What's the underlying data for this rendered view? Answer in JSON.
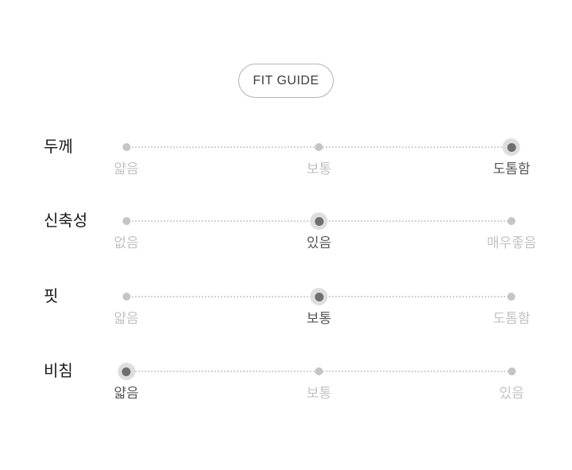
{
  "fit_guide_button": {
    "label": "FIT GUIDE"
  },
  "rows": [
    {
      "name": "두께",
      "options": [
        {
          "label": "얇음",
          "selected": false
        },
        {
          "label": "보통",
          "selected": false
        },
        {
          "label": "도톰함",
          "selected": true
        }
      ]
    },
    {
      "name": "신축성",
      "options": [
        {
          "label": "없음",
          "selected": false
        },
        {
          "label": "있음",
          "selected": true
        },
        {
          "label": "매우좋음",
          "selected": false
        }
      ]
    },
    {
      "name": "핏",
      "options": [
        {
          "label": "얇음",
          "selected": false
        },
        {
          "label": "보통",
          "selected": true
        },
        {
          "label": "도톰함",
          "selected": false
        }
      ]
    },
    {
      "name": "비침",
      "options": [
        {
          "label": "얇음",
          "selected": true
        },
        {
          "label": "보통",
          "selected": false
        },
        {
          "label": "있음",
          "selected": false
        }
      ]
    }
  ],
  "colors": {
    "background": "#ffffff",
    "row_title": "#1a1a1a",
    "selected_dot": "#6f6f6f",
    "selected_dot_halo": "#dedede",
    "inactive_dot": "#c5c5c5",
    "track_dotted_line": "#d2d2d2",
    "selected_label": "#585858",
    "inactive_label": "#c3c3c3",
    "button_border": "#b3b3b3",
    "button_text": "#3d3d3d"
  }
}
